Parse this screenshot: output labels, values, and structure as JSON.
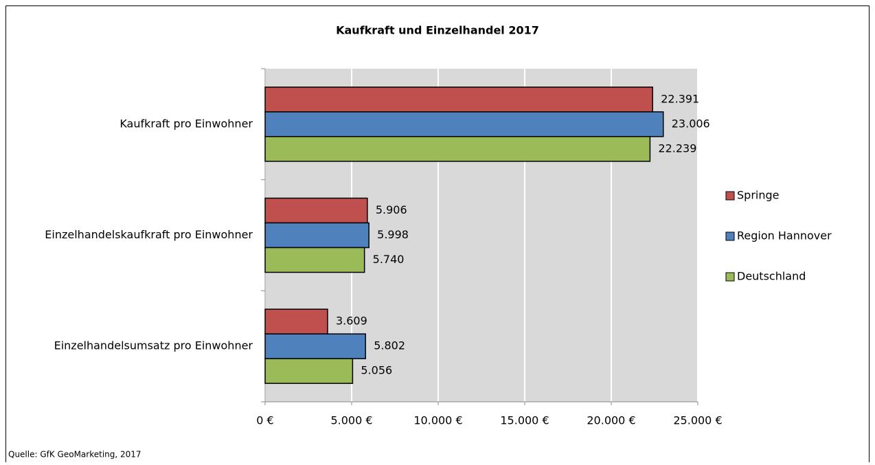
{
  "chart_data": {
    "type": "hbar",
    "title": "Kaufkraft und Einzelhandel  2017",
    "categories": [
      "Kaufkraft pro Einwohner",
      "Einzelhandelskaufkraft pro Einwohner",
      "Einzelhandelsumsatz pro Einwohner"
    ],
    "series": [
      {
        "name": "Springe",
        "color": "#c0504d",
        "values": [
          22391,
          5906,
          3609
        ],
        "value_labels": [
          "22.391",
          "5.906",
          "3.609"
        ]
      },
      {
        "name": "Region Hannover",
        "color": "#4f81bd",
        "values": [
          23006,
          5998,
          5802
        ],
        "value_labels": [
          "23.006",
          "5.998",
          "5.802"
        ]
      },
      {
        "name": "Deutschland",
        "color": "#9bbb59",
        "values": [
          22239,
          5740,
          5056
        ],
        "value_labels": [
          "22.239",
          "5.740",
          "5.056"
        ]
      }
    ],
    "xlim": [
      0,
      25000
    ],
    "xticks": [
      {
        "value": 0,
        "label": "0 €"
      },
      {
        "value": 5000,
        "label": "5.000 €"
      },
      {
        "value": 10000,
        "label": "10.000 €"
      },
      {
        "value": 15000,
        "label": "15.000 €"
      },
      {
        "value": 20000,
        "label": "20.000 €"
      },
      {
        "value": 25000,
        "label": "25.000 €"
      }
    ],
    "grid": true,
    "legend": "right",
    "source": "Quelle: GfK GeoMarketing, 2017"
  }
}
